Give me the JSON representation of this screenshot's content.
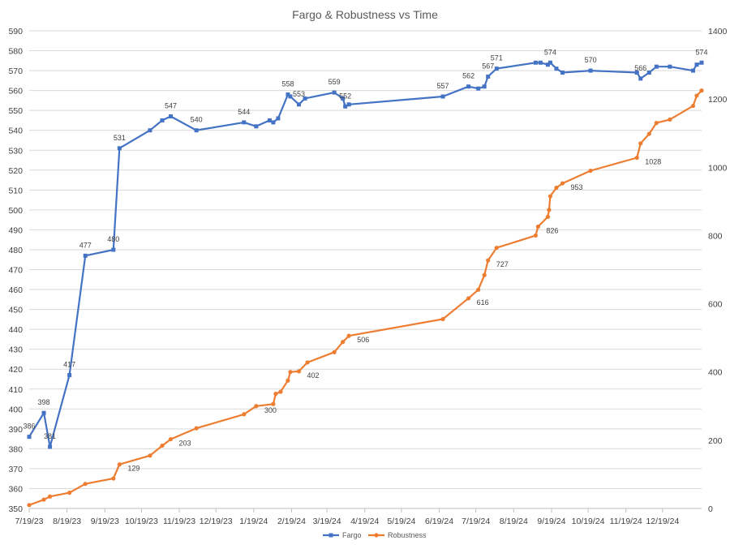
{
  "chart_data": {
    "type": "line",
    "title": "Fargo & Robustness vs Time",
    "xlabel": "",
    "ylabel": "",
    "y2label": "",
    "x_ticks": [
      "7/19/23",
      "8/19/23",
      "9/19/23",
      "10/19/23",
      "11/19/23",
      "12/19/23",
      "1/19/24",
      "2/19/24",
      "3/19/24",
      "4/19/24",
      "5/19/24",
      "6/19/24",
      "7/19/24",
      "8/19/24",
      "9/19/24",
      "10/19/24",
      "11/19/24",
      "12/19/24"
    ],
    "xlim": [
      "7/19/23",
      "1/20/25"
    ],
    "y_ticks": [
      350,
      360,
      370,
      380,
      390,
      400,
      410,
      420,
      430,
      440,
      450,
      460,
      470,
      480,
      490,
      500,
      510,
      520,
      530,
      540,
      550,
      560,
      570,
      580,
      590
    ],
    "ylim": [
      350,
      590
    ],
    "y2_ticks": [
      0,
      200,
      400,
      600,
      800,
      1000,
      1200,
      1400
    ],
    "y2lim": [
      0,
      1400
    ],
    "gridlines": true,
    "legend_position": "bottom",
    "series": [
      {
        "name": "Fargo",
        "axis": "left",
        "color": "#4472C4",
        "marker": "square",
        "points": [
          {
            "x": "7/19/23",
            "y": 386,
            "label": "386"
          },
          {
            "x": "7/31/23",
            "y": 398,
            "label": "398"
          },
          {
            "x": "8/5/23",
            "y": 381,
            "label": "381"
          },
          {
            "x": "8/21/23",
            "y": 417,
            "label": "417"
          },
          {
            "x": "9/3/23",
            "y": 477,
            "label": "477"
          },
          {
            "x": "9/26/23",
            "y": 480,
            "label": "480"
          },
          {
            "x": "10/1/23",
            "y": 531,
            "label": "531"
          },
          {
            "x": "10/26/23",
            "y": 540
          },
          {
            "x": "11/5/23",
            "y": 545
          },
          {
            "x": "11/12/23",
            "y": 547,
            "label": "547"
          },
          {
            "x": "12/3/23",
            "y": 540,
            "label": "540"
          },
          {
            "x": "1/11/24",
            "y": 544,
            "label": "544"
          },
          {
            "x": "1/21/24",
            "y": 542
          },
          {
            "x": "2/1/24",
            "y": 545
          },
          {
            "x": "2/4/24",
            "y": 544
          },
          {
            "x": "2/8/24",
            "y": 546
          },
          {
            "x": "2/16/24",
            "y": 558,
            "label": "558"
          },
          {
            "x": "2/18/24",
            "y": 557
          },
          {
            "x": "2/25/24",
            "y": 553,
            "label": "553"
          },
          {
            "x": "3/1/24",
            "y": 556
          },
          {
            "x": "3/25/24",
            "y": 559,
            "label": "559"
          },
          {
            "x": "4/1/24",
            "y": 556
          },
          {
            "x": "4/3/24",
            "y": 552,
            "label": "552"
          },
          {
            "x": "4/6/24",
            "y": 553
          },
          {
            "x": "6/22/24",
            "y": 557,
            "label": "557"
          },
          {
            "x": "7/13/24",
            "y": 562,
            "label": "562"
          },
          {
            "x": "7/21/24",
            "y": 561
          },
          {
            "x": "7/26/24",
            "y": 562
          },
          {
            "x": "7/29/24",
            "y": 567,
            "label": "567"
          },
          {
            "x": "8/5/24",
            "y": 571,
            "label": "571"
          },
          {
            "x": "9/6/24",
            "y": 574
          },
          {
            "x": "9/10/24",
            "y": 574
          },
          {
            "x": "9/16/24",
            "y": 573
          },
          {
            "x": "9/18/24",
            "y": 574,
            "label": "574"
          },
          {
            "x": "9/23/24",
            "y": 571
          },
          {
            "x": "9/28/24",
            "y": 569
          },
          {
            "x": "10/21/24",
            "y": 570,
            "label": "570"
          },
          {
            "x": "11/28/24",
            "y": 569
          },
          {
            "x": "12/1/24",
            "y": 566,
            "label": "566"
          },
          {
            "x": "12/8/24",
            "y": 569
          },
          {
            "x": "12/14/24",
            "y": 572
          },
          {
            "x": "12/25/24",
            "y": 572
          },
          {
            "x": "1/13/25",
            "y": 570
          },
          {
            "x": "1/16/25",
            "y": 573
          },
          {
            "x": "1/20/25",
            "y": 574,
            "label": "574"
          }
        ]
      },
      {
        "name": "Robustness",
        "axis": "right",
        "color": "#ED7D31",
        "marker": "circle",
        "points": [
          {
            "x": "7/19/23",
            "y": 10
          },
          {
            "x": "7/31/23",
            "y": 26
          },
          {
            "x": "8/5/23",
            "y": 35
          },
          {
            "x": "8/21/23",
            "y": 46
          },
          {
            "x": "9/3/23",
            "y": 72
          },
          {
            "x": "9/26/23",
            "y": 88
          },
          {
            "x": "10/1/23",
            "y": 129,
            "label": "129"
          },
          {
            "x": "10/26/23",
            "y": 155
          },
          {
            "x": "11/5/23",
            "y": 184
          },
          {
            "x": "11/12/23",
            "y": 203,
            "label": "203"
          },
          {
            "x": "12/3/23",
            "y": 235
          },
          {
            "x": "1/11/24",
            "y": 276
          },
          {
            "x": "1/21/24",
            "y": 300,
            "label": "300"
          },
          {
            "x": "2/4/24",
            "y": 306
          },
          {
            "x": "2/6/24",
            "y": 336
          },
          {
            "x": "2/10/24",
            "y": 342
          },
          {
            "x": "2/16/24",
            "y": 375
          },
          {
            "x": "2/18/24",
            "y": 400
          },
          {
            "x": "2/25/24",
            "y": 402,
            "label": "402"
          },
          {
            "x": "3/3/24",
            "y": 428
          },
          {
            "x": "3/25/24",
            "y": 458
          },
          {
            "x": "4/1/24",
            "y": 488
          },
          {
            "x": "4/6/24",
            "y": 506,
            "label": "506"
          },
          {
            "x": "6/22/24",
            "y": 555
          },
          {
            "x": "7/13/24",
            "y": 616,
            "label": "616"
          },
          {
            "x": "7/21/24",
            "y": 641
          },
          {
            "x": "7/26/24",
            "y": 684
          },
          {
            "x": "7/29/24",
            "y": 727,
            "label": "727"
          },
          {
            "x": "8/5/24",
            "y": 764
          },
          {
            "x": "9/6/24",
            "y": 800
          },
          {
            "x": "9/8/24",
            "y": 826,
            "label": "826"
          },
          {
            "x": "9/16/24",
            "y": 855
          },
          {
            "x": "9/17/24",
            "y": 875
          },
          {
            "x": "9/18/24",
            "y": 915
          },
          {
            "x": "9/23/24",
            "y": 940
          },
          {
            "x": "9/28/24",
            "y": 953,
            "label": "953"
          },
          {
            "x": "10/21/24",
            "y": 990
          },
          {
            "x": "11/28/24",
            "y": 1028,
            "label": "1028"
          },
          {
            "x": "12/1/24",
            "y": 1070
          },
          {
            "x": "12/8/24",
            "y": 1098
          },
          {
            "x": "12/14/24",
            "y": 1130
          },
          {
            "x": "12/25/24",
            "y": 1140
          },
          {
            "x": "1/13/25",
            "y": 1180
          },
          {
            "x": "1/16/25",
            "y": 1210
          },
          {
            "x": "1/20/25",
            "y": 1225
          }
        ]
      }
    ]
  }
}
